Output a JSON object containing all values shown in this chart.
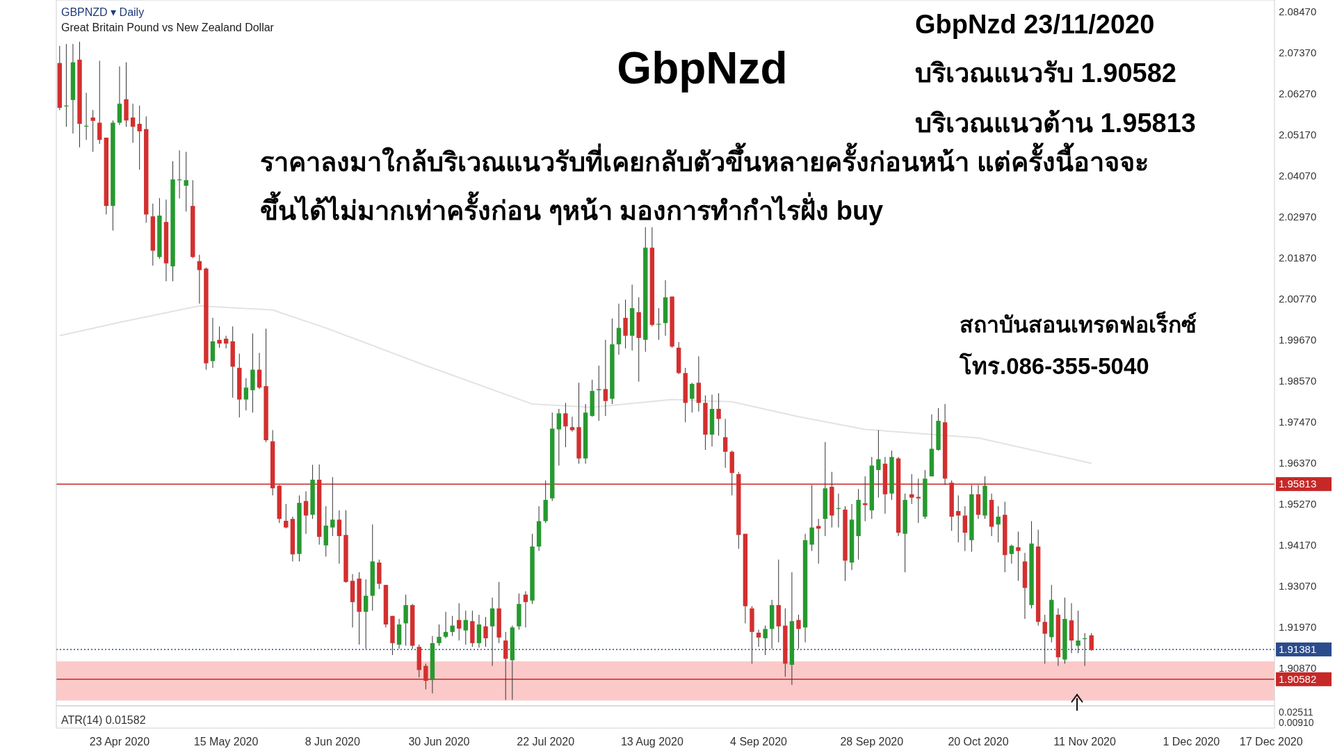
{
  "chart_data": [
    {
      "type": "candlestick",
      "title": "GbpNzd",
      "categories": [
        null,
        null,
        null,
        null,
        null,
        null,
        null,
        null,
        null,
        "23 Apr 2020",
        null,
        null,
        null,
        null,
        null,
        null,
        null,
        null,
        null,
        null,
        null,
        null,
        null,
        null,
        null,
        "15 May 2020",
        null,
        null,
        null,
        null,
        null,
        null,
        null,
        null,
        null,
        null,
        null,
        null,
        null,
        null,
        null,
        "8 Jun 2020",
        null,
        null,
        null,
        null,
        null,
        null,
        null,
        null,
        null,
        null,
        null,
        null,
        null,
        null,
        null,
        "30 Jun 2020",
        null,
        null,
        null,
        null,
        null,
        null,
        null,
        null,
        null,
        null,
        null,
        null,
        null,
        null,
        null,
        "22 Jul 2020",
        null,
        null,
        null,
        null,
        null,
        null,
        null,
        null,
        null,
        null,
        null,
        null,
        null,
        null,
        null,
        "13 Aug 2020",
        null,
        null,
        null,
        null,
        null,
        null,
        null,
        null,
        null,
        null,
        null,
        null,
        null,
        null,
        null,
        "4 Sep 2020",
        null,
        null,
        null,
        null,
        null,
        null,
        null,
        null,
        null,
        null,
        null,
        null,
        null,
        null,
        null,
        null,
        "28 Sep 2020",
        null,
        null,
        null,
        null,
        null,
        null,
        null,
        null,
        null,
        null,
        null,
        null,
        null,
        null,
        null,
        "20 Oct 2020",
        null,
        null,
        null,
        null,
        null,
        null,
        null,
        null,
        null,
        null,
        null,
        null,
        null,
        null,
        null,
        "11 Nov 2020",
        null,
        null,
        null,
        null,
        null,
        null,
        null,
        null,
        null,
        null,
        null,
        null,
        null,
        null,
        null,
        "1 Dec 2020",
        null,
        null,
        null,
        null,
        null,
        null,
        null,
        null,
        null,
        null,
        null,
        "17 Dec 2020"
      ],
      "ohlc": [
        [
          2.071,
          2.0756,
          2.0584,
          2.059
        ],
        [
          2.0596,
          2.0761,
          2.0539,
          2.0596
        ],
        [
          2.0611,
          2.0761,
          2.0521,
          2.0712
        ],
        [
          2.0719,
          2.0767,
          2.0484,
          2.0547
        ],
        [
          2.0542,
          2.063,
          2.0504,
          2.0542
        ],
        [
          2.0564,
          2.0584,
          2.0472,
          2.0555
        ],
        [
          2.055,
          2.0716,
          2.0493,
          2.0504
        ],
        [
          2.051,
          2.051,
          2.0304,
          2.0327
        ],
        [
          2.0327,
          2.0556,
          2.0261,
          2.055
        ],
        [
          2.055,
          2.0701,
          2.0544,
          2.0601
        ],
        [
          2.0613,
          2.0712,
          2.0539,
          2.0556
        ],
        [
          2.0564,
          2.0601,
          2.0496,
          2.0539
        ],
        [
          2.0547,
          2.0596,
          2.0424,
          2.0527
        ],
        [
          2.0533,
          2.0567,
          2.0282,
          2.0304
        ],
        [
          2.0299,
          2.0333,
          2.0167,
          2.0207
        ],
        [
          2.019,
          2.0348,
          2.0185,
          2.0301
        ],
        [
          2.0284,
          2.0344,
          2.0125,
          2.0173
        ],
        [
          2.0165,
          2.0447,
          2.0125,
          2.0398
        ],
        [
          2.0398,
          2.0476,
          2.0347,
          2.0398
        ],
        [
          2.0381,
          2.0472,
          2.0312,
          2.0396
        ],
        [
          2.0327,
          2.0396,
          2.0187,
          2.019
        ],
        [
          2.0179,
          2.0196,
          2.0065,
          2.0155
        ],
        [
          2.0159,
          2.0162,
          1.9888,
          1.9905
        ],
        [
          1.9911,
          2.0027,
          1.9893,
          1.9964
        ],
        [
          1.9968,
          2.0004,
          1.9947,
          1.9958
        ],
        [
          1.9971,
          1.9979,
          1.9945,
          1.9958
        ],
        [
          1.9964,
          2.0004,
          1.9813,
          1.9896
        ],
        [
          1.9893,
          1.9931,
          1.976,
          1.9808
        ],
        [
          1.9808,
          1.9865,
          1.9779,
          1.984
        ],
        [
          1.9833,
          1.9985,
          1.9773,
          1.9888
        ],
        [
          1.9888,
          1.9933,
          1.9836,
          1.984
        ],
        [
          1.9844,
          1.9998,
          1.9694,
          1.9699
        ],
        [
          1.9696,
          1.9726,
          1.9551,
          1.957
        ],
        [
          1.9577,
          1.9579,
          1.9477,
          1.9488
        ],
        [
          1.9483,
          1.9528,
          1.9463,
          1.9465
        ],
        [
          1.9488,
          1.9494,
          1.9374,
          1.9393
        ],
        [
          1.9394,
          1.9551,
          1.9374,
          1.9531
        ],
        [
          1.9536,
          1.9562,
          1.9448,
          1.9497
        ],
        [
          1.9499,
          1.9633,
          1.9488,
          1.9593
        ],
        [
          1.9593,
          1.9634,
          1.9419,
          1.944
        ],
        [
          1.9417,
          1.9522,
          1.9387,
          1.947
        ],
        [
          1.9465,
          1.96,
          1.9442,
          1.9486
        ],
        [
          1.9486,
          1.9511,
          1.9368,
          1.9442
        ],
        [
          1.9445,
          1.9511,
          1.9317,
          1.9319
        ],
        [
          1.9322,
          1.934,
          1.9197,
          1.9265
        ],
        [
          1.9328,
          1.9345,
          1.9151,
          1.9239
        ],
        [
          1.9239,
          1.9326,
          1.914,
          1.9282
        ],
        [
          1.9282,
          1.9473,
          1.9242,
          1.9374
        ],
        [
          1.9371,
          1.9379,
          1.93,
          1.9314
        ],
        [
          1.9311,
          1.9311,
          1.9197,
          1.9205
        ],
        [
          1.9228,
          1.9228,
          1.9123,
          1.9155
        ],
        [
          1.9151,
          1.922,
          1.914,
          1.9205
        ],
        [
          1.9208,
          1.9285,
          1.9148,
          1.9257
        ],
        [
          1.9257,
          1.926,
          1.914,
          1.9148
        ],
        [
          1.9145,
          1.9151,
          1.9063,
          1.9083
        ],
        [
          1.9094,
          1.91,
          1.9031,
          1.9054
        ],
        [
          1.9056,
          1.9174,
          1.902,
          1.9155
        ],
        [
          1.9155,
          1.9205,
          1.9148,
          1.9172
        ],
        [
          1.9172,
          1.9239,
          1.9168,
          1.9185
        ],
        [
          1.9185,
          1.9228,
          1.9174,
          1.9202
        ],
        [
          1.9217,
          1.9262,
          1.9162,
          1.9194
        ],
        [
          1.9189,
          1.9242,
          1.9151,
          1.9217
        ],
        [
          1.9214,
          1.9242,
          1.9145,
          1.9155
        ],
        [
          1.9155,
          1.9231,
          1.9143,
          1.9205
        ],
        [
          1.92,
          1.9225,
          1.9145,
          1.9168
        ],
        [
          1.92,
          1.9277,
          1.9094,
          1.9248
        ],
        [
          1.9248,
          1.9319,
          1.9155,
          1.917
        ],
        [
          1.9162,
          1.9185,
          1.9003,
          1.9113
        ],
        [
          1.9109,
          1.9202,
          1.9003,
          1.9197
        ],
        [
          1.92,
          1.9288,
          1.9191,
          1.926
        ],
        [
          1.9285,
          1.9294,
          1.9197,
          1.9265
        ],
        [
          1.9269,
          1.9448,
          1.926,
          1.9414
        ],
        [
          1.9414,
          1.9522,
          1.9402,
          1.9482
        ],
        [
          1.9482,
          1.9591,
          1.9477,
          1.9539
        ],
        [
          1.9543,
          1.9773,
          1.9536,
          1.973
        ],
        [
          1.9728,
          1.9783,
          1.9631,
          1.9771
        ],
        [
          1.9771,
          1.9799,
          1.968,
          1.9736
        ],
        [
          1.9734,
          1.9762,
          1.9722,
          1.9726
        ],
        [
          1.9734,
          1.9853,
          1.9636,
          1.965
        ],
        [
          1.965,
          1.9796,
          1.9636,
          1.9773
        ],
        [
          1.9764,
          1.9861,
          1.9762,
          1.9831
        ],
        [
          1.9833,
          1.9899,
          1.9751,
          1.9836
        ],
        [
          1.9836,
          1.9968,
          1.9764,
          1.9804
        ],
        [
          1.981,
          2.0025,
          1.9796,
          1.9956
        ],
        [
          1.9956,
          2.0065,
          1.9928,
          2.0
        ],
        [
          2.0027,
          2.0076,
          1.9945,
          1.9979
        ],
        [
          1.9979,
          2.0116,
          1.9939,
          2.0053
        ],
        [
          2.0042,
          2.0082,
          1.9856,
          1.9973
        ],
        [
          1.9968,
          2.027,
          1.9936,
          2.0215
        ],
        [
          2.0215,
          2.027,
          2.0004,
          2.0008
        ],
        [
          2.0011,
          2.0053,
          1.9968,
          2.0011
        ],
        [
          2.0013,
          2.0128,
          1.9979,
          2.0082
        ],
        [
          2.0084,
          2.0084,
          1.9947,
          1.995
        ],
        [
          1.9947,
          1.9962,
          1.9876,
          1.9879
        ],
        [
          1.9879,
          1.9893,
          1.9747,
          1.9799
        ],
        [
          1.981,
          1.9853,
          1.9773,
          1.985
        ],
        [
          1.9853,
          1.9924,
          1.9776,
          1.9799
        ],
        [
          1.9799,
          1.9819,
          1.9673,
          1.9714
        ],
        [
          1.9714,
          1.9821,
          1.9682,
          1.9783
        ],
        [
          1.9783,
          1.9825,
          1.9711,
          1.9756
        ],
        [
          1.9707,
          1.9756,
          1.9625,
          1.9668
        ],
        [
          1.9668,
          1.9671,
          1.9551,
          1.9611
        ],
        [
          1.9608,
          1.9614,
          1.9408,
          1.9445
        ],
        [
          1.9448,
          1.9448,
          1.9208,
          1.9254
        ],
        [
          1.9248,
          1.9254,
          1.91,
          1.9185
        ],
        [
          1.9183,
          1.9191,
          1.9145,
          1.917
        ],
        [
          1.9168,
          1.9202,
          1.9123,
          1.9193
        ],
        [
          1.9193,
          1.9271,
          1.914,
          1.9257
        ],
        [
          1.9257,
          1.9379,
          1.9157,
          1.92
        ],
        [
          1.9202,
          1.9248,
          1.9065,
          1.91
        ],
        [
          1.9097,
          1.9345,
          1.9043,
          1.9214
        ],
        [
          1.9217,
          1.9231,
          1.914,
          1.9193
        ],
        [
          1.9197,
          1.9448,
          1.9157,
          1.9431
        ],
        [
          1.9419,
          1.9579,
          1.9402,
          1.9465
        ],
        [
          1.9469,
          1.9488,
          1.9368,
          1.9462
        ],
        [
          1.9488,
          1.9694,
          1.9442,
          1.957
        ],
        [
          1.9574,
          1.9614,
          1.9465,
          1.9497
        ],
        [
          1.9517,
          1.9556,
          1.9465,
          1.9517
        ],
        [
          1.9513,
          1.9522,
          1.9322,
          1.9376
        ],
        [
          1.9371,
          1.9528,
          1.9351,
          1.9486
        ],
        [
          1.9442,
          1.9568,
          1.9379,
          1.9539
        ],
        [
          1.953,
          1.9602,
          1.9482,
          1.9525
        ],
        [
          1.9511,
          1.9654,
          1.9488,
          1.9631
        ],
        [
          1.9619,
          1.9726,
          1.9545,
          1.9648
        ],
        [
          1.9636,
          1.9654,
          1.9502,
          1.9554
        ],
        [
          1.9556,
          1.9671,
          1.9539,
          1.9654
        ],
        [
          1.965,
          1.9654,
          1.9442,
          1.9451
        ],
        [
          1.9448,
          1.9556,
          1.9345,
          1.9539
        ],
        [
          1.9554,
          1.9608,
          1.9528,
          1.9545
        ],
        [
          1.9547,
          1.9596,
          1.9477,
          1.9543
        ],
        [
          1.9494,
          1.9619,
          1.9488,
          1.9596
        ],
        [
          1.9602,
          1.9768,
          1.9602,
          1.9676
        ],
        [
          1.9673,
          1.9785,
          1.9671,
          1.9751
        ],
        [
          1.9747,
          1.9796,
          1.9579,
          1.9596
        ],
        [
          1.9585,
          1.9591,
          1.9456,
          1.9494
        ],
        [
          1.9509,
          1.9551,
          1.9425,
          1.9497
        ],
        [
          1.9497,
          1.9522,
          1.9402,
          1.9451
        ],
        [
          1.9431,
          1.9579,
          1.94,
          1.9554
        ],
        [
          1.9554,
          1.9579,
          1.9488,
          1.9499
        ],
        [
          1.9497,
          1.9602,
          1.9488,
          1.9577
        ],
        [
          1.9539,
          1.9556,
          1.9442,
          1.9467
        ],
        [
          1.9473,
          1.9522,
          1.9425,
          1.9494
        ],
        [
          1.9499,
          1.9534,
          1.9345,
          1.9391
        ],
        [
          1.9394,
          1.9419,
          1.9368,
          1.9416
        ],
        [
          1.9412,
          1.9454,
          1.9322,
          1.9402
        ],
        [
          1.9374,
          1.9397,
          1.922,
          1.9303
        ],
        [
          1.9257,
          1.9482,
          1.9248,
          1.9422
        ],
        [
          1.9414,
          1.9459,
          1.9202,
          1.9212
        ],
        [
          1.9212,
          1.9231,
          1.91,
          1.918
        ],
        [
          1.9171,
          1.9311,
          1.9157,
          1.9271
        ],
        [
          1.9231,
          1.9248,
          1.9094,
          1.9117
        ],
        [
          1.9111,
          1.9277,
          1.91,
          1.922
        ],
        [
          1.9216,
          1.9262,
          1.9128,
          1.9162
        ],
        [
          1.9148,
          1.9242,
          1.9128,
          1.9162
        ],
        [
          1.9168,
          1.9182,
          1.9094,
          1.9168
        ],
        [
          1.9176,
          1.9182,
          1.9134,
          1.9137
        ],
        null,
        null,
        null,
        null,
        null,
        null,
        null,
        null,
        null,
        null,
        null,
        null,
        null,
        null,
        null,
        null,
        null,
        null,
        null,
        null,
        null,
        null,
        null,
        null,
        null,
        null,
        null
      ],
      "colors": [
        "#d32f2f",
        "#26992f",
        "#26992f",
        "#d32f2f",
        "#26992f",
        "#d32f2f",
        "#d32f2f",
        "#d32f2f",
        "#26992f",
        "#26992f",
        "#d32f2f",
        "#d32f2f",
        "#d32f2f",
        "#d32f2f",
        "#d32f2f",
        "#26992f",
        "#d32f2f",
        "#26992f",
        "#26992f",
        "#26992f",
        "#d32f2f",
        "#d32f2f",
        "#d32f2f",
        "#26992f",
        "#d32f2f",
        "#d32f2f",
        "#d32f2f",
        "#d32f2f",
        "#26992f",
        "#26992f",
        "#d32f2f",
        "#d32f2f",
        "#d32f2f",
        "#d32f2f",
        "#d32f2f",
        "#d32f2f",
        "#26992f",
        "#d32f2f",
        "#26992f",
        "#d32f2f",
        "#26992f",
        "#26992f",
        "#d32f2f",
        "#d32f2f",
        "#d32f2f",
        "#d32f2f",
        "#26992f",
        "#26992f",
        "#d32f2f",
        "#d32f2f",
        "#d32f2f",
        "#26992f",
        "#26992f",
        "#d32f2f",
        "#d32f2f",
        "#d32f2f",
        "#26992f",
        "#26992f",
        "#26992f",
        "#26992f",
        "#d32f2f",
        "#26992f",
        "#d32f2f",
        "#26992f",
        "#d32f2f",
        "#26992f",
        "#d32f2f",
        "#d32f2f",
        "#26992f",
        "#26992f",
        "#d32f2f",
        "#26992f",
        "#26992f",
        "#26992f",
        "#26992f",
        "#26992f",
        "#d32f2f",
        "#d32f2f",
        "#d32f2f",
        "#26992f",
        "#26992f",
        "#26992f",
        "#d32f2f",
        "#26992f",
        "#26992f",
        "#d32f2f",
        "#26992f",
        "#d32f2f",
        "#26992f",
        "#d32f2f",
        "#26992f",
        "#26992f",
        "#d32f2f",
        "#d32f2f",
        "#d32f2f",
        "#26992f",
        "#d32f2f",
        "#d32f2f",
        "#26992f",
        "#d32f2f",
        "#d32f2f",
        "#d32f2f",
        "#d32f2f",
        "#d32f2f",
        "#d32f2f",
        "#d32f2f",
        "#26992f",
        "#26992f",
        "#d32f2f",
        "#d32f2f",
        "#26992f",
        "#d32f2f",
        "#26992f",
        "#26992f",
        "#d32f2f",
        "#26992f",
        "#d32f2f",
        "#26992f",
        "#d32f2f",
        "#26992f",
        "#26992f",
        "#d32f2f",
        "#26992f",
        "#26992f",
        "#d32f2f",
        "#26992f",
        "#d32f2f",
        "#26992f",
        "#d32f2f",
        "#d32f2f",
        "#26992f",
        "#26992f",
        "#26992f",
        "#d32f2f",
        "#d32f2f",
        "#d32f2f",
        "#d32f2f",
        "#26992f",
        "#d32f2f",
        "#26992f",
        "#d32f2f",
        "#26992f",
        "#d32f2f",
        "#26992f",
        "#d32f2f",
        "#d32f2f",
        "#26992f",
        "#d32f2f",
        "#d32f2f",
        "#26992f",
        "#d32f2f",
        "#26992f",
        "#d32f2f",
        "#26992f",
        "#26992f",
        "#d32f2f",
        null,
        null,
        null,
        null,
        null,
        null,
        null,
        null,
        null,
        null,
        null,
        null,
        null,
        null,
        null,
        null,
        null,
        null,
        null,
        null,
        null,
        null,
        null,
        null,
        null,
        null,
        null
      ],
      "series": [
        {
          "type": "line",
          "color": "#e3e3e3",
          "values": [
            1.9979,
            null,
            null,
            null,
            null,
            null,
            null,
            null,
            null,
            null,
            2.0019,
            null,
            null,
            null,
            null,
            null,
            null,
            null,
            null,
            null,
            null,
            2.0059,
            null,
            null,
            null,
            null,
            null,
            null,
            null,
            null,
            null,
            null,
            2.0048,
            null,
            null,
            null,
            null,
            null,
            null,
            null,
            2.0,
            null,
            null,
            null,
            null,
            null,
            null,
            null,
            null,
            null,
            null,
            null,
            null,
            null,
            null,
            1.9899,
            null,
            null,
            null,
            null,
            null,
            null,
            null,
            null,
            null,
            null,
            null,
            null,
            null,
            null,
            null,
            1.9796,
            null,
            null,
            null,
            null,
            null,
            null,
            null,
            null,
            1.9787,
            null,
            null,
            null,
            null,
            null,
            null,
            null,
            null,
            null,
            null,
            null,
            1.9808,
            null,
            null,
            null,
            null,
            null,
            null,
            null,
            null,
            1.9802,
            null,
            null,
            null,
            null,
            null,
            null,
            null,
            null,
            null,
            1.9762,
            null,
            null,
            null,
            null,
            null,
            null,
            null,
            null,
            null,
            1.9728,
            null,
            null,
            null,
            null,
            null,
            null,
            null,
            null,
            null,
            null,
            null,
            null,
            null,
            null,
            null,
            null,
            1.9705,
            null,
            null,
            null,
            null,
            null,
            null,
            null,
            null,
            null,
            null,
            null,
            null,
            null,
            null,
            null,
            null,
            1.9637,
            null,
            null,
            null,
            null,
            null,
            null,
            null,
            null,
            null,
            null,
            null,
            null,
            null,
            null,
            null,
            null,
            null,
            null,
            null,
            null,
            null,
            null,
            null,
            null,
            null,
            null,
            null
          ]
        }
      ],
      "ylim": [
        1.8987,
        2.0879
      ],
      "yticks": [
        {
          "value": 2.0847,
          "label": "2.08470"
        },
        {
          "value": 2.0737,
          "label": "2.07370"
        },
        {
          "value": 2.0627,
          "label": "2.06270"
        },
        {
          "value": 2.0517,
          "label": "2.05170"
        },
        {
          "value": 2.0407,
          "label": "2.04070"
        },
        {
          "value": 2.0297,
          "label": "2.02970"
        },
        {
          "value": 2.0187,
          "label": "2.01870"
        },
        {
          "value": 2.0077,
          "label": "2.00770"
        },
        {
          "value": 1.9967,
          "label": "1.99670"
        },
        {
          "value": 1.9857,
          "label": "1.98570"
        },
        {
          "value": 1.9747,
          "label": "1.97470"
        },
        {
          "value": 1.9637,
          "label": "1.96370"
        },
        {
          "value": 1.9527,
          "label": "1.95270"
        },
        {
          "value": 1.9417,
          "label": "1.94170"
        },
        {
          "value": 1.9307,
          "label": "1.93070"
        },
        {
          "value": 1.9197,
          "label": "1.91970"
        },
        {
          "value": 1.9087,
          "label": "1.90870"
        }
      ],
      "ref_lines": [
        {
          "axis": "y",
          "value": 1.95813,
          "label": "1.95813",
          "color": "#c62828",
          "line_style": "solid"
        },
        {
          "axis": "y",
          "value": 1.90582,
          "label": "1.90582",
          "color": "#c62828",
          "line_style": "solid"
        },
        {
          "axis": "y",
          "value": 1.91381,
          "label": "1.91381",
          "color": "#2b4c8c",
          "line_style": "dotted"
        }
      ],
      "bands": [
        {
          "axis": "y",
          "from": 1.9001,
          "to": 1.9106,
          "color": "#fcc9c9"
        }
      ],
      "annotations": [
        "GBPNZD ▾ Daily",
        "Great Britain Pound vs New Zealand Dollar",
        "GbpNzd 23/11/2020",
        "บริเวณแนวรับ 1.90582",
        "บริเวณแนวต้าน 1.95813",
        "ราคาลงมาใกล้บริเวณแนวรับที่เคยกลับตัวขึ้นหลายครั้งก่อนหน้า แต่ครั้งนี้อาจจะ",
        "ขึ้นได้ไม่มากเท่าครั้งก่อน ๆหน้า มองการทำกำไรฝั่ง buy",
        "สถาบันสอนเทรดฟอเร็กซ์",
        "โทร.086-355-5040"
      ],
      "grid": false
    },
    {
      "type": "other",
      "title": "ATR(14) 0.01582",
      "annotations": [
        "0.02511",
        "0.00910"
      ]
    }
  ]
}
